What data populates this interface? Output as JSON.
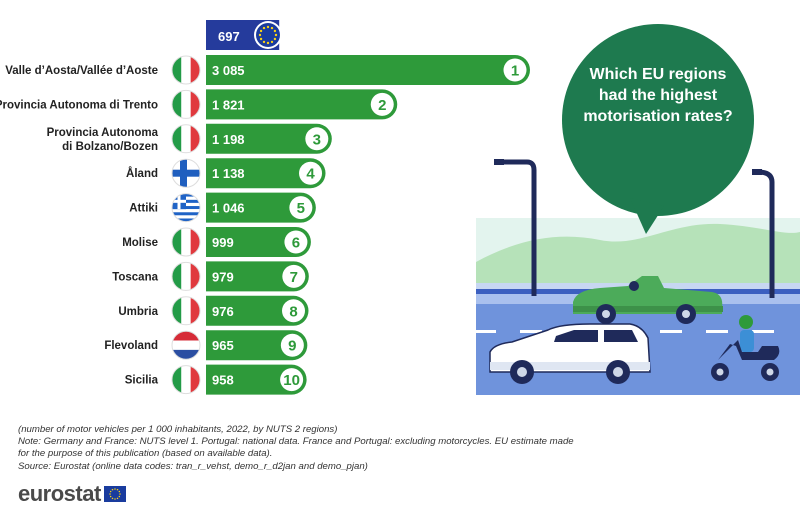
{
  "chart_data": {
    "type": "bar",
    "orientation": "horizontal",
    "categories": [
      "Valle d’Aosta/Vallée d’Aoste",
      "Provincia Autonoma di Trento",
      "Provincia Autonoma di Bolzano/Bozen",
      "Åland",
      "Attiki",
      "Molise",
      "Toscana",
      "Umbria",
      "Flevoland",
      "Sicilia"
    ],
    "label_lines": [
      [
        "Valle d’Aosta/Vallée d’Aoste"
      ],
      [
        "Provincia Autonoma di Trento"
      ],
      [
        "Provincia Autonoma",
        "di Bolzano/Bozen"
      ],
      [
        "Åland"
      ],
      [
        "Attiki"
      ],
      [
        "Molise"
      ],
      [
        "Toscana"
      ],
      [
        "Umbria"
      ],
      [
        "Flevoland"
      ],
      [
        "Sicilia"
      ]
    ],
    "values": [
      3085,
      1821,
      1198,
      1138,
      1046,
      999,
      979,
      976,
      965,
      958
    ],
    "value_labels": [
      "3 085",
      "1 821",
      "1 198",
      "1 138",
      "1 046",
      "999",
      "979",
      "976",
      "965",
      "958"
    ],
    "ranks": [
      "1",
      "2",
      "3",
      "4",
      "5",
      "6",
      "7",
      "8",
      "9",
      "10"
    ],
    "flags": [
      "italy-flag",
      "italy-flag",
      "italy-flag",
      "finland-flag",
      "greece-flag",
      "italy-flag",
      "italy-flag",
      "italy-flag",
      "netherlands-flag",
      "italy-flag"
    ],
    "eu_reference": {
      "value": 697,
      "label": "697"
    },
    "xlim": [
      0,
      3085
    ]
  },
  "bubble_text": "Which EU regions had the highest motorisation rates?",
  "notes": [
    "(number of motor vehicles per 1 000 inhabitants, 2022, by NUTS 2 regions)",
    "Note: Germany and France: NUTS level 1. Portugal: national data. France and Portugal: excluding motorcycles. EU estimate made",
    "for the purpose of this publication (based on available data).",
    "Source: Eurostat (online data codes: tran_r_vehst, demo_r_d2jan and demo_pjan)"
  ],
  "logo_text": "eurostat",
  "colors": {
    "bar": "#2e9a3a",
    "eu_bar": "#253b9c",
    "bubble": "#1e7a4f",
    "road": "#6f93dc",
    "hills": "#b6e2b9",
    "sky": "#dff2ec"
  }
}
